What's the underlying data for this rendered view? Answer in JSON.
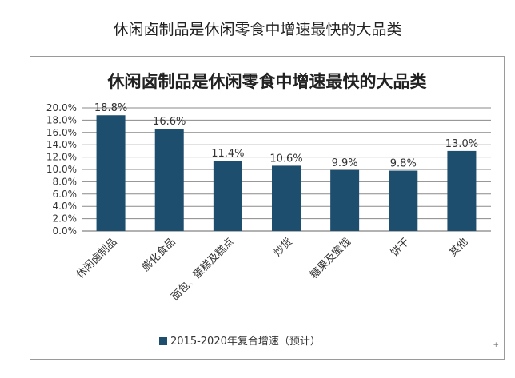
{
  "page_caption": "休闲卤制品是休闲零食中增速最快的大品类",
  "colors": {
    "bar": "#1e4e6e",
    "grid": "#8a8a8a",
    "axis": "#666666",
    "text": "#333333"
  },
  "chart_data": {
    "type": "bar",
    "title": "休闲卤制品是休闲零食中增速最快的大品类",
    "categories": [
      "休闲卤制品",
      "膨化食品",
      "面包、蛋糕及糕点",
      "炒货",
      "糖果及蜜饯",
      "饼干",
      "其他"
    ],
    "series": [
      {
        "name": "2015-2020年复合增速（预计）",
        "values": [
          18.8,
          16.6,
          11.4,
          10.6,
          9.9,
          9.8,
          13.0
        ],
        "labels": [
          "18.8%",
          "16.6%",
          "11.4%",
          "10.6%",
          "9.9%",
          "9.8%",
          "13.0%"
        ]
      }
    ],
    "ylim": [
      0,
      20
    ],
    "yticks": [
      0,
      2,
      4,
      6,
      8,
      10,
      12,
      14,
      16,
      18,
      20
    ],
    "ytick_labels": [
      "0.0%",
      "2.0%",
      "4.0%",
      "6.0%",
      "8.0%",
      "10.0%",
      "12.0%",
      "14.0%",
      "16.0%",
      "18.0%",
      "20.0%"
    ],
    "xlabel": "",
    "ylabel": "",
    "grid": true,
    "legend_position": "bottom"
  }
}
